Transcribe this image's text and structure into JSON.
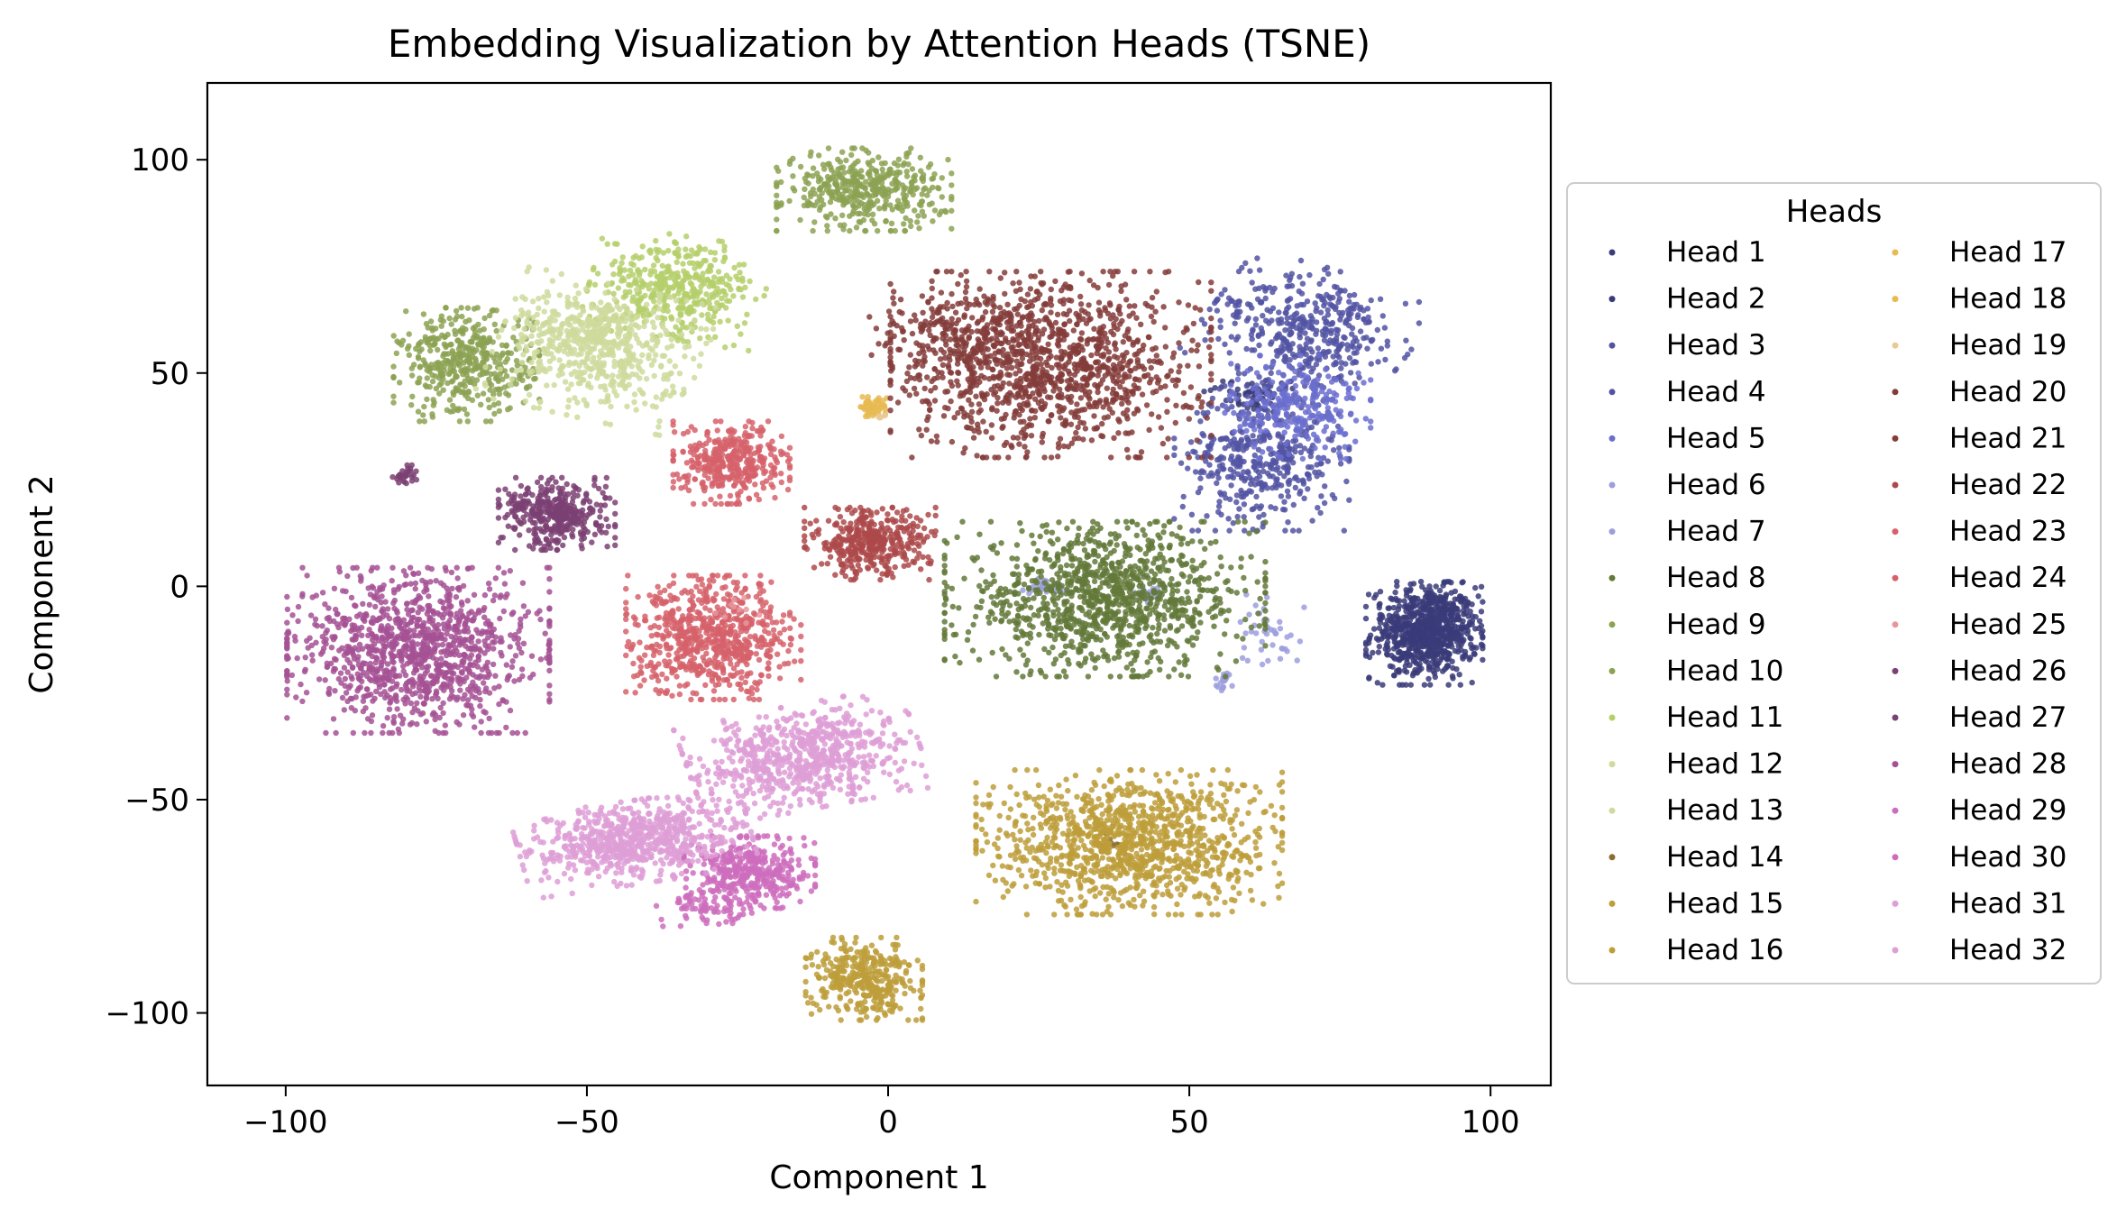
{
  "chart_data": {
    "type": "scatter",
    "title": "Embedding Visualization by Attention Heads (TSNE)",
    "xlabel": "Component 1",
    "ylabel": "Component 2",
    "xlim": [
      -113,
      110
    ],
    "ylim": [
      -117,
      118
    ],
    "xticks": [
      -100,
      -50,
      0,
      50,
      100
    ],
    "yticks": [
      -100,
      -50,
      0,
      50,
      100
    ],
    "xtick_labels": [
      "−100",
      "−50",
      "0",
      "50",
      "100"
    ],
    "ytick_labels": [
      "−100",
      "−50",
      "0",
      "50",
      "100"
    ],
    "grid": false,
    "legend": {
      "title": "Heads",
      "placement": "outside-right",
      "columns": 2
    },
    "series": [
      {
        "name": "Head 1",
        "color": "#3c3c7a",
        "clusters": [
          [
            90,
            -10,
            7,
            9,
            0,
            380
          ]
        ]
      },
      {
        "name": "Head 2",
        "color": "#393b79",
        "clusters": [
          [
            89,
            -11,
            8,
            10,
            0,
            420
          ],
          [
            60,
            45,
            6,
            4,
            0.2,
            60
          ]
        ]
      },
      {
        "name": "Head 3",
        "color": "#5254a3",
        "clusters": [
          [
            70,
            60,
            14,
            12,
            -0.5,
            420
          ]
        ]
      },
      {
        "name": "Head 4",
        "color": "#5254a3",
        "clusters": [
          [
            62,
            30,
            12,
            14,
            0,
            420
          ]
        ]
      },
      {
        "name": "Head 5",
        "color": "#6b6ecf",
        "clusters": [
          [
            68,
            42,
            10,
            10,
            0,
            250
          ]
        ]
      },
      {
        "name": "Head 6",
        "color": "#9c9ede",
        "clusters": [
          [
            26,
            0,
            3,
            2,
            0,
            30
          ],
          [
            43,
            -2,
            2,
            1.5,
            0,
            20
          ]
        ]
      },
      {
        "name": "Head 7",
        "color": "#9c9ede",
        "clusters": [
          [
            56,
            -22,
            1.5,
            2,
            0,
            20
          ],
          [
            63,
            -10,
            5,
            8,
            0,
            40
          ]
        ]
      },
      {
        "name": "Head 8",
        "color": "#637939",
        "clusters": [
          [
            36,
            -3,
            22,
            15,
            0,
            1100
          ]
        ]
      },
      {
        "name": "Head 9",
        "color": "#8ca252",
        "clusters": [
          [
            -4,
            93,
            12,
            8,
            0,
            420
          ]
        ]
      },
      {
        "name": "Head 10",
        "color": "#8ca252",
        "clusters": [
          [
            -70,
            52,
            10,
            11,
            0,
            420
          ]
        ]
      },
      {
        "name": "Head 11",
        "color": "#b5cf6b",
        "clusters": [
          [
            -35,
            70,
            12,
            10,
            -0.2,
            420
          ]
        ]
      },
      {
        "name": "Head 12",
        "color": "#cedb9c",
        "clusters": [
          [
            -48,
            55,
            14,
            13,
            -0.3,
            480
          ]
        ]
      },
      {
        "name": "Head 13",
        "color": "#cedb9c",
        "clusters": [
          [
            -50,
            60,
            9,
            8,
            0,
            150
          ]
        ]
      },
      {
        "name": "Head 14",
        "color": "#8c6d31",
        "clusters": [
          [
            37,
            -60,
            2,
            2,
            0,
            15
          ]
        ]
      },
      {
        "name": "Head 15",
        "color": "#bd9e39",
        "clusters": [
          [
            40,
            -60,
            21,
            14,
            0,
            1100
          ]
        ]
      },
      {
        "name": "Head 16",
        "color": "#bd9e39",
        "clusters": [
          [
            -4,
            -92,
            8,
            8,
            0,
            360
          ]
        ]
      },
      {
        "name": "Head 17",
        "color": "#e7ba52",
        "clusters": [
          [
            -2,
            42,
            2,
            2,
            0,
            40
          ]
        ]
      },
      {
        "name": "Head 18",
        "color": "#e7ba52",
        "clusters": [
          [
            -3,
            41,
            1.5,
            1.5,
            0,
            15
          ]
        ]
      },
      {
        "name": "Head 19",
        "color": "#e7cb94",
        "clusters": [
          [
            -1,
            40,
            1,
            1,
            0,
            5
          ]
        ]
      },
      {
        "name": "Head 20",
        "color": "#843c39",
        "clusters": [
          [
            27,
            52,
            22,
            18,
            0,
            1200
          ]
        ]
      },
      {
        "name": "Head 21",
        "color": "#843c39",
        "clusters": [
          [
            10,
            60,
            12,
            10,
            0,
            150
          ]
        ]
      },
      {
        "name": "Head 22",
        "color": "#ad494a",
        "clusters": [
          [
            -3,
            10,
            9,
            7,
            0,
            380
          ]
        ]
      },
      {
        "name": "Head 23",
        "color": "#d6616b",
        "clusters": [
          [
            -29,
            -12,
            12,
            12,
            0,
            700
          ]
        ]
      },
      {
        "name": "Head 24",
        "color": "#d6616b",
        "clusters": [
          [
            -26,
            29,
            8,
            8,
            0,
            380
          ]
        ]
      },
      {
        "name": "Head 25",
        "color": "#e7969c",
        "clusters": [
          [
            -25,
            -5,
            3,
            3,
            0,
            10
          ]
        ]
      },
      {
        "name": "Head 26",
        "color": "#7b4173",
        "clusters": [
          [
            -55,
            17,
            8,
            7,
            0,
            380
          ]
        ]
      },
      {
        "name": "Head 27",
        "color": "#7b4173",
        "clusters": [
          [
            -80,
            26,
            2,
            2,
            0,
            30
          ]
        ]
      },
      {
        "name": "Head 28",
        "color": "#a55194",
        "clusters": [
          [
            -78,
            -15,
            18,
            16,
            0,
            1100
          ]
        ]
      },
      {
        "name": "Head 29",
        "color": "#ce6dbd",
        "clusters": [
          [
            -23,
            -67,
            9,
            7,
            0,
            380
          ]
        ]
      },
      {
        "name": "Head 30",
        "color": "#ce6dbd",
        "clusters": [
          [
            -30,
            -75,
            7,
            4,
            0,
            80
          ]
        ]
      },
      {
        "name": "Head 31",
        "color": "#de9ed6",
        "clusters": [
          [
            -14,
            -40,
            16,
            10,
            0.25,
            700
          ]
        ]
      },
      {
        "name": "Head 32",
        "color": "#de9ed6",
        "clusters": [
          [
            -42,
            -60,
            16,
            8,
            0.2,
            700
          ]
        ]
      }
    ]
  }
}
